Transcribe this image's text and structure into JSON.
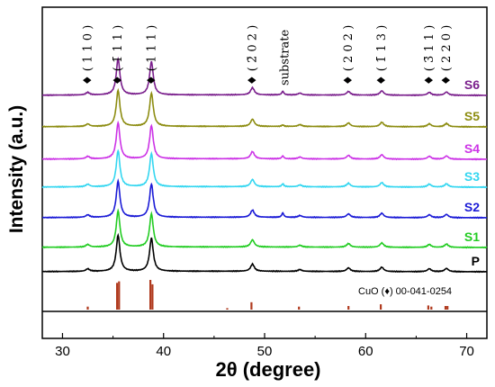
{
  "chart_data": {
    "type": "line",
    "xlabel": "2θ (degree)",
    "ylabel": "Intensity (a.u.)",
    "xlim": [
      28,
      72
    ],
    "xticks": [
      30,
      40,
      50,
      60,
      70
    ],
    "x_range": [
      28,
      72
    ],
    "peaks_main": [
      {
        "x": 32.5,
        "h": 0.07
      },
      {
        "x": 35.5,
        "h": 1.0
      },
      {
        "x": 38.8,
        "h": 0.92
      },
      {
        "x": 48.8,
        "h": 0.2
      },
      {
        "x": 53.5,
        "h": 0.05
      },
      {
        "x": 58.3,
        "h": 0.1
      },
      {
        "x": 61.6,
        "h": 0.12
      },
      {
        "x": 66.3,
        "h": 0.08
      },
      {
        "x": 68.0,
        "h": 0.09
      }
    ],
    "series": [
      {
        "name": "P",
        "color": "#000000",
        "substrate_peak": 0.0
      },
      {
        "name": "S1",
        "color": "#22cc22",
        "substrate_peak": 0.0
      },
      {
        "name": "S2",
        "color": "#1a1ad6",
        "substrate_peak": 0.12
      },
      {
        "name": "S3",
        "color": "#33d6f0",
        "substrate_peak": 0.08
      },
      {
        "name": "S4",
        "color": "#cc33e6",
        "substrate_peak": 0.08
      },
      {
        "name": "S5",
        "color": "#8c8c10",
        "substrate_peak": 0.04
      },
      {
        "name": "S6",
        "color": "#7a1f8c",
        "substrate_peak": 0.1
      }
    ],
    "peak_annotations": [
      {
        "label": "♦ ( 1 1 0 )",
        "x": 32.5
      },
      {
        "label": "♦ ( 1̄ 1 1 )",
        "x": 35.5
      },
      {
        "label": "♦ ( 1 1 1 )",
        "x": 38.8
      },
      {
        "label": "♦ ( 2̄ 0 2 )",
        "x": 48.8
      },
      {
        "label": "substrate",
        "x": 52.0
      },
      {
        "label": "♦ ( 2 0 2 )",
        "x": 58.3
      },
      {
        "label": "♦ ( 1̄ 1 3 )",
        "x": 61.6
      },
      {
        "label": "♦ ( 3̄ 1 1 )",
        "x": 66.3
      },
      {
        "label": "♦ ( 2 2 0 )",
        "x": 68.0
      }
    ],
    "reference": {
      "label": "CuO (♦)   00-041-0254",
      "color": "#b03a1e",
      "lines": [
        {
          "x": 32.5,
          "h": 0.1
        },
        {
          "x": 35.4,
          "h": 0.9
        },
        {
          "x": 35.6,
          "h": 0.95
        },
        {
          "x": 38.7,
          "h": 1.0
        },
        {
          "x": 38.9,
          "h": 0.85
        },
        {
          "x": 46.3,
          "h": 0.05
        },
        {
          "x": 48.7,
          "h": 0.25
        },
        {
          "x": 53.4,
          "h": 0.1
        },
        {
          "x": 58.3,
          "h": 0.12
        },
        {
          "x": 61.5,
          "h": 0.18
        },
        {
          "x": 66.2,
          "h": 0.14
        },
        {
          "x": 66.5,
          "h": 0.1
        },
        {
          "x": 67.9,
          "h": 0.12
        },
        {
          "x": 68.1,
          "h": 0.12
        }
      ]
    }
  }
}
